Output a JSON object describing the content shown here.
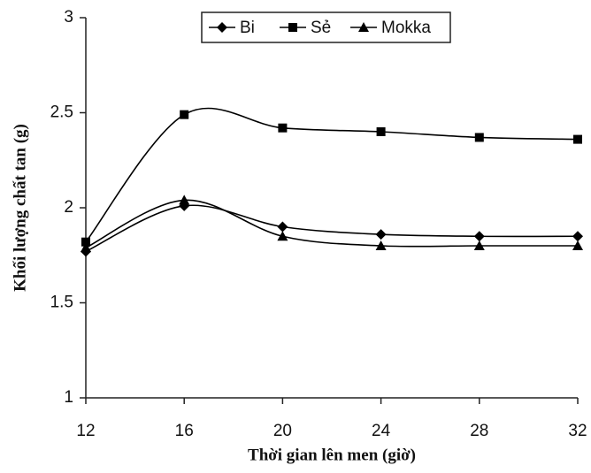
{
  "chart_data": {
    "type": "line",
    "x_label": "Thời gian lên men (giờ)",
    "y_label": "Khối lượng chất tan (g)",
    "x": [
      12,
      16,
      20,
      24,
      28,
      32
    ],
    "series": [
      {
        "name": "Bi",
        "color": "#000000",
        "marker": "diamond",
        "values": [
          1.77,
          2.01,
          1.9,
          1.86,
          1.85,
          1.85
        ]
      },
      {
        "name": "Sẻ",
        "color": "#000000",
        "marker": "square",
        "values": [
          1.82,
          2.49,
          2.42,
          2.4,
          2.37,
          2.36
        ]
      },
      {
        "name": "Mokka",
        "color": "#000000",
        "marker": "triangle",
        "values": [
          1.79,
          2.04,
          1.85,
          1.8,
          1.8,
          1.8
        ]
      }
    ],
    "xlim": [
      12,
      32
    ],
    "xticks": [
      12,
      16,
      20,
      24,
      28,
      32
    ],
    "ylim": [
      1,
      3
    ],
    "yticks": [
      1,
      1.5,
      2,
      2.5,
      3
    ],
    "grid": false,
    "legend": "top",
    "smooth": true
  }
}
